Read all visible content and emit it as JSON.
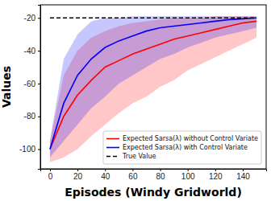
{
  "chart_data": {
    "type": "line",
    "x_label": "Episodes (Windy Gridworld)",
    "y_label": "Values",
    "x": [
      0,
      10,
      20,
      30,
      40,
      50,
      60,
      70,
      80,
      90,
      100,
      110,
      120,
      130,
      140,
      150
    ],
    "xlim": [
      -7,
      157
    ],
    "ylim": [
      -112,
      -12
    ],
    "xticks": [
      0,
      20,
      40,
      60,
      80,
      100,
      120,
      140
    ],
    "yticks": [
      -100,
      -80,
      -60,
      -40,
      -20
    ],
    "grid": false,
    "legend": "lower right",
    "series": [
      {
        "name": "Expected Sarsa(λ) without Control Variate",
        "color": "#ff0000",
        "values": [
          -100,
          -80,
          -67,
          -58,
          -50,
          -46,
          -42,
          -39,
          -36,
          -33,
          -31,
          -29,
          -27,
          -25,
          -23,
          -22
        ],
        "lower": [
          -108,
          -105,
          -100,
          -92,
          -85,
          -78,
          -72,
          -68,
          -62,
          -58,
          -52,
          -48,
          -44,
          -40,
          -36,
          -32
        ],
        "upper": [
          -95,
          -55,
          -40,
          -32,
          -28,
          -25,
          -23,
          -22,
          -21,
          -20,
          -20,
          -20,
          -19,
          -19,
          -19,
          -19
        ]
      },
      {
        "name": "Expected Sarsa(λ) with Control Variate",
        "color": "#0000ff",
        "values": [
          -100,
          -72,
          -55,
          -45,
          -38,
          -34,
          -31,
          -28,
          -26,
          -25,
          -24,
          -23,
          -22,
          -21,
          -20.5,
          -20
        ],
        "lower": [
          -105,
          -95,
          -85,
          -75,
          -68,
          -60,
          -55,
          -50,
          -45,
          -42,
          -38,
          -35,
          -32,
          -30,
          -28,
          -26
        ],
        "upper": [
          -95,
          -45,
          -30,
          -22,
          -20,
          -20,
          -19,
          -19,
          -19,
          -19,
          -19,
          -19,
          -19,
          -19,
          -19,
          -19
        ]
      },
      {
        "name": "True Value",
        "color": "#000000",
        "line_style": "dashed",
        "values": [
          -20,
          -20,
          -20,
          -20,
          -20,
          -20,
          -20,
          -20,
          -20,
          -20,
          -20,
          -20,
          -20,
          -20,
          -20,
          -20
        ]
      }
    ]
  }
}
